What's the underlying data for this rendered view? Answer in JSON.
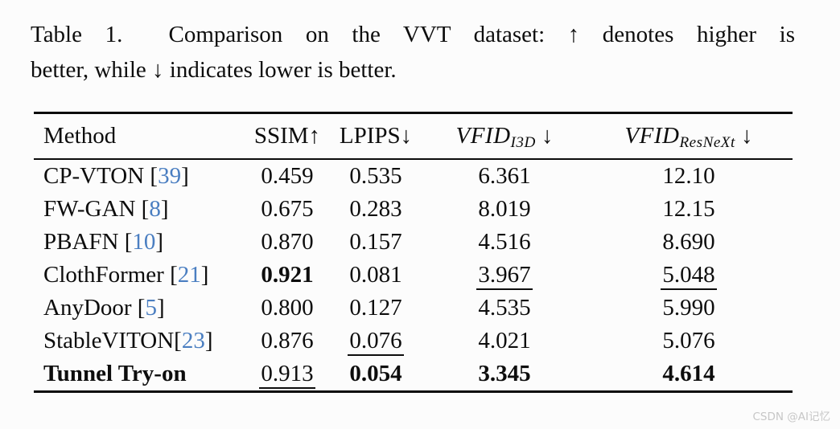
{
  "caption": {
    "line1": "Table 1.  Comparison on the VVT dataset: ↑ denotes higher is",
    "line2": "better, while ↓ indicates lower is better."
  },
  "colors": {
    "citation_blue": "#4a7ec1",
    "rule_black": "#0b0b0b",
    "watermark_gray": "#c7c7c7"
  },
  "table": {
    "columns": [
      {
        "key": "method",
        "label": "Method",
        "arrow": "",
        "sub": "",
        "align": "left",
        "math": false
      },
      {
        "key": "ssim",
        "label": "SSIM",
        "arrow": "↑",
        "sub": "",
        "align": "center",
        "math": false
      },
      {
        "key": "lpips",
        "label": "LPIPS",
        "arrow": "↓",
        "sub": "",
        "align": "center",
        "math": false
      },
      {
        "key": "vfid_i3d",
        "label": "VFID",
        "arrow": " ↓",
        "sub": "I3D",
        "align": "center",
        "math": true
      },
      {
        "key": "vfid_resnext",
        "label": "VFID",
        "arrow": " ↓",
        "sub": "ResNeXt",
        "align": "center",
        "math": true
      }
    ],
    "rows": [
      {
        "method": "CP-VTON",
        "citation": "39",
        "cite_space": true,
        "method_bold": false,
        "cells": [
          {
            "value": "0.459",
            "bold": false,
            "underline": false
          },
          {
            "value": "0.535",
            "bold": false,
            "underline": false
          },
          {
            "value": "6.361",
            "bold": false,
            "underline": false
          },
          {
            "value": "12.10",
            "bold": false,
            "underline": false
          }
        ]
      },
      {
        "method": "FW-GAN",
        "citation": "8",
        "cite_space": true,
        "method_bold": false,
        "cells": [
          {
            "value": "0.675",
            "bold": false,
            "underline": false
          },
          {
            "value": "0.283",
            "bold": false,
            "underline": false
          },
          {
            "value": "8.019",
            "bold": false,
            "underline": false
          },
          {
            "value": "12.15",
            "bold": false,
            "underline": false
          }
        ]
      },
      {
        "method": "PBAFN",
        "citation": "10",
        "cite_space": true,
        "method_bold": false,
        "cells": [
          {
            "value": "0.870",
            "bold": false,
            "underline": false
          },
          {
            "value": "0.157",
            "bold": false,
            "underline": false
          },
          {
            "value": "4.516",
            "bold": false,
            "underline": false
          },
          {
            "value": "8.690",
            "bold": false,
            "underline": false
          }
        ]
      },
      {
        "method": "ClothFormer",
        "citation": "21",
        "cite_space": true,
        "method_bold": false,
        "cells": [
          {
            "value": "0.921",
            "bold": true,
            "underline": false
          },
          {
            "value": "0.081",
            "bold": false,
            "underline": false
          },
          {
            "value": "3.967",
            "bold": false,
            "underline": true
          },
          {
            "value": "5.048",
            "bold": false,
            "underline": true
          }
        ]
      },
      {
        "method": "AnyDoor",
        "citation": "5",
        "cite_space": true,
        "method_bold": false,
        "cells": [
          {
            "value": "0.800",
            "bold": false,
            "underline": false
          },
          {
            "value": "0.127",
            "bold": false,
            "underline": false
          },
          {
            "value": "4.535",
            "bold": false,
            "underline": false
          },
          {
            "value": "5.990",
            "bold": false,
            "underline": false
          }
        ]
      },
      {
        "method": "StableVITON",
        "citation": "23",
        "cite_space": false,
        "method_bold": false,
        "cells": [
          {
            "value": "0.876",
            "bold": false,
            "underline": false
          },
          {
            "value": "0.076",
            "bold": false,
            "underline": true
          },
          {
            "value": "4.021",
            "bold": false,
            "underline": false
          },
          {
            "value": "5.076",
            "bold": false,
            "underline": false
          }
        ]
      },
      {
        "method": "Tunnel Try-on",
        "citation": null,
        "cite_space": false,
        "method_bold": true,
        "cells": [
          {
            "value": "0.913",
            "bold": false,
            "underline": true
          },
          {
            "value": "0.054",
            "bold": true,
            "underline": false
          },
          {
            "value": "3.345",
            "bold": true,
            "underline": false
          },
          {
            "value": "4.614",
            "bold": true,
            "underline": false
          }
        ]
      }
    ]
  },
  "watermark": "CSDN @AI记忆"
}
